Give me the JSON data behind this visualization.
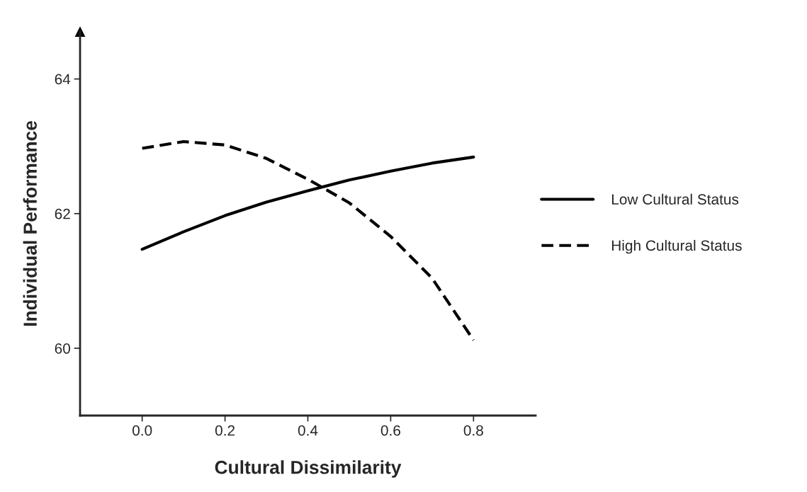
{
  "chart_data": {
    "type": "line",
    "xlabel": "Cultural Dissimilarity",
    "ylabel": "Individual Performance",
    "x": [
      0.0,
      0.1,
      0.2,
      0.3,
      0.4,
      0.5,
      0.6,
      0.7,
      0.8
    ],
    "series": [
      {
        "name": "Low Cultural Status",
        "color": "#000000",
        "line_style": "solid",
        "values": [
          61.47,
          61.73,
          61.97,
          62.17,
          62.34,
          62.5,
          62.63,
          62.75,
          62.84
        ]
      },
      {
        "name": "High Cultural Status",
        "color": "#000000",
        "line_style": "dashed",
        "values": [
          62.97,
          63.07,
          63.02,
          62.82,
          62.51,
          62.16,
          61.66,
          61.04,
          60.12
        ]
      }
    ],
    "xlim": [
      -0.15,
      0.95
    ],
    "ylim": [
      59.0,
      64.7
    ],
    "xticks": [
      {
        "value": 0.0,
        "label": "0.0"
      },
      0.2,
      0.4,
      0.6,
      0.8
    ],
    "yticks": [
      60,
      62,
      64
    ],
    "grid": false,
    "legend": "right",
    "marker": "none"
  }
}
